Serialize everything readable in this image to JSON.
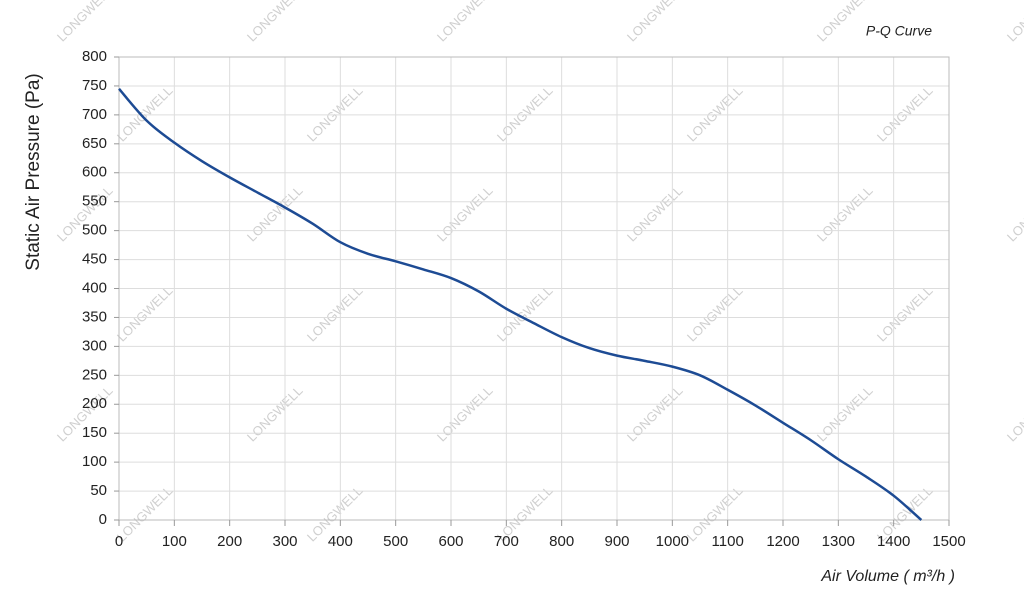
{
  "chart_data": {
    "type": "line",
    "title": "P-Q Curve",
    "x_label": "Air Volume ( m³/h )",
    "y_label": "Static Air Pressure  (Pa)",
    "watermark": "LONGWELL",
    "x": [
      0,
      50,
      100,
      150,
      200,
      250,
      300,
      350,
      400,
      450,
      500,
      550,
      600,
      650,
      700,
      750,
      800,
      850,
      900,
      950,
      1000,
      1050,
      1100,
      1150,
      1200,
      1250,
      1300,
      1350,
      1400,
      1450
    ],
    "series": [
      {
        "name": "P-Q",
        "color": "#1d4b94",
        "values": [
          745,
          690,
          652,
          620,
          592,
          566,
          540,
          512,
          480,
          460,
          447,
          433,
          418,
          395,
          365,
          340,
          316,
          297,
          284,
          275,
          265,
          250,
          225,
          198,
          168,
          138,
          105,
          75,
          42,
          0
        ]
      }
    ],
    "xlim": [
      0,
      1500
    ],
    "xticks": [
      0,
      100,
      200,
      300,
      400,
      500,
      600,
      700,
      800,
      900,
      1000,
      1100,
      1200,
      1300,
      1400,
      1500
    ],
    "ylim": [
      0,
      800
    ],
    "yticks": [
      0,
      50,
      100,
      150,
      200,
      250,
      300,
      350,
      400,
      450,
      500,
      550,
      600,
      650,
      700,
      750,
      800
    ],
    "grid": true
  }
}
